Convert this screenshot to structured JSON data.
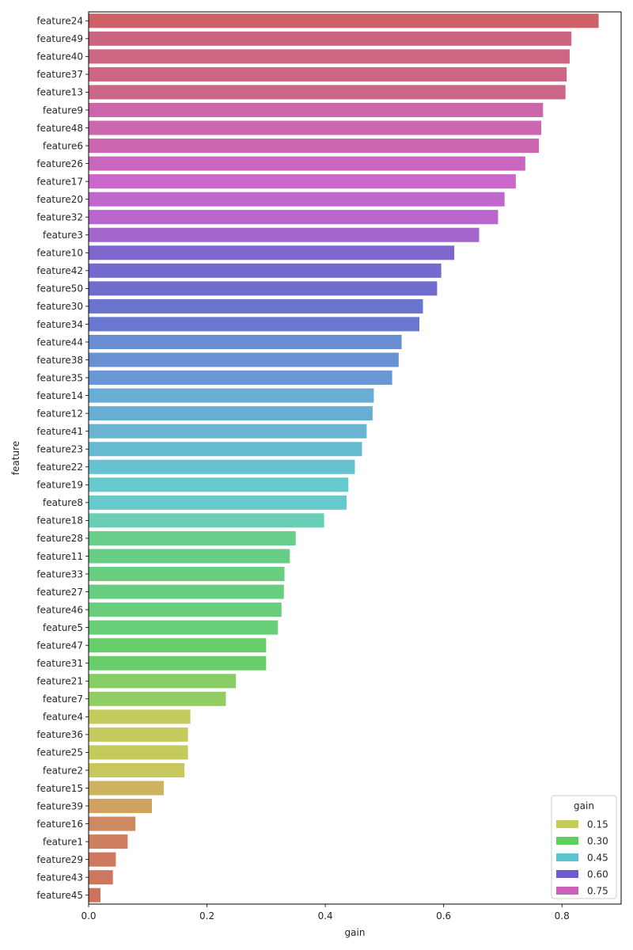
{
  "chart_data": {
    "type": "bar",
    "orientation": "horizontal",
    "xlabel": "gain",
    "ylabel": "feature",
    "xlim": [
      0,
      0.9
    ],
    "xticks": [
      0.0,
      0.2,
      0.4,
      0.6,
      0.8
    ],
    "xtick_labels": [
      "0.0",
      "0.2",
      "0.4",
      "0.6",
      "0.8"
    ],
    "grid": false,
    "categories": [
      "feature24",
      "feature49",
      "feature40",
      "feature37",
      "feature13",
      "feature9",
      "feature48",
      "feature6",
      "feature26",
      "feature17",
      "feature20",
      "feature32",
      "feature3",
      "feature10",
      "feature42",
      "feature50",
      "feature30",
      "feature34",
      "feature44",
      "feature38",
      "feature35",
      "feature14",
      "feature12",
      "feature41",
      "feature23",
      "feature22",
      "feature19",
      "feature8",
      "feature18",
      "feature28",
      "feature11",
      "feature33",
      "feature27",
      "feature46",
      "feature5",
      "feature47",
      "feature31",
      "feature21",
      "feature7",
      "feature4",
      "feature36",
      "feature25",
      "feature2",
      "feature15",
      "feature39",
      "feature16",
      "feature1",
      "feature29",
      "feature43",
      "feature45"
    ],
    "values": [
      0.862,
      0.816,
      0.813,
      0.808,
      0.806,
      0.768,
      0.765,
      0.761,
      0.738,
      0.722,
      0.703,
      0.692,
      0.66,
      0.618,
      0.596,
      0.589,
      0.565,
      0.559,
      0.529,
      0.524,
      0.513,
      0.482,
      0.48,
      0.47,
      0.462,
      0.45,
      0.439,
      0.436,
      0.398,
      0.35,
      0.34,
      0.331,
      0.33,
      0.326,
      0.32,
      0.3,
      0.3,
      0.249,
      0.232,
      0.172,
      0.168,
      0.168,
      0.162,
      0.127,
      0.107,
      0.079,
      0.066,
      0.046,
      0.041,
      0.02
    ],
    "legend": {
      "title": "gain",
      "placement": "bottom-right",
      "entries": [
        {
          "label": "0.15",
          "color": "#c5cc58"
        },
        {
          "label": "0.30",
          "color": "#5ecf5a"
        },
        {
          "label": "0.45",
          "color": "#5bc4d0"
        },
        {
          "label": "0.60",
          "color": "#6b5fcf"
        },
        {
          "label": "0.75",
          "color": "#cc5fb8"
        }
      ]
    }
  }
}
